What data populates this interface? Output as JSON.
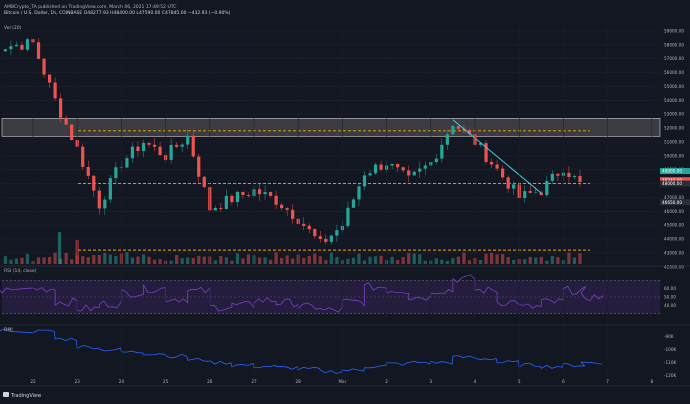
{
  "header": {
    "author": "AMBCrypto_TA",
    "published": "published on TradingView.com, March 06, 2021 17:49:52 UTC",
    "symbol_line": "Bitcoin / U.S. Dollar, 1h, COINBASE",
    "ohlc_line": "O48277.93  H48400.00  L47590.00  C47845.00  −432.93 (−0.90%)",
    "volume_label": "Vol (20)"
  },
  "footer": {
    "brand": "TradingView"
  },
  "colors": {
    "background": "#131722",
    "up": "#26a69a",
    "down": "#ef5350",
    "support_resistance": "#f7a600",
    "zone_fill": "#6b6b6b",
    "trendline": "#4ec8e0",
    "rsi": "#7b3fc4",
    "dmi": "#2962ff",
    "price_tag_green": "#26a69a",
    "price_tag_red": "#ef5350"
  },
  "chart_data": [
    {
      "type": "candlestick",
      "title": "Bitcoin / U.S. Dollar, 1h, COINBASE",
      "x_tick_labels": [
        "22",
        "23",
        "24",
        "25",
        "26",
        "27",
        "28",
        "Mar",
        "2",
        "3",
        "4",
        "5",
        "6",
        "7",
        "8"
      ],
      "y_tick_labels": [
        "59000.00",
        "58000.00",
        "57000.00",
        "56000.00",
        "55000.00",
        "54000.00",
        "53000.00",
        "52000.00",
        "51000.00",
        "50000.00",
        "49000.00",
        "48000.00",
        "47000.00",
        "46000.00",
        "45000.00",
        "44000.00",
        "43000.00",
        "42000.00"
      ],
      "ylim": [
        42200,
        59500
      ],
      "price_path_daily": [
        {
          "day": "21",
          "price": 57800
        },
        {
          "day": "22",
          "price": 58100
        },
        {
          "day": "22.5",
          "price": 54000
        },
        {
          "day": "23",
          "price": 50500
        },
        {
          "day": "23.5",
          "price": 46500
        },
        {
          "day": "24",
          "price": 49500
        },
        {
          "day": "24.5",
          "price": 51000
        },
        {
          "day": "25",
          "price": 50000
        },
        {
          "day": "25.5",
          "price": 51400
        },
        {
          "day": "26",
          "price": 46200
        },
        {
          "day": "26.5",
          "price": 46900
        },
        {
          "day": "27",
          "price": 47500
        },
        {
          "day": "27.5",
          "price": 46800
        },
        {
          "day": "28",
          "price": 45500
        },
        {
          "day": "28.5",
          "price": 43600
        },
        {
          "day": "Mar",
          "price": 45000
        },
        {
          "day": "1.5",
          "price": 48800
        },
        {
          "day": "2",
          "price": 49500
        },
        {
          "day": "2.5",
          "price": 48200
        },
        {
          "day": "3",
          "price": 49500
        },
        {
          "day": "3.5",
          "price": 52400
        },
        {
          "day": "4",
          "price": 51000
        },
        {
          "day": "4.5",
          "price": 49000
        },
        {
          "day": "5",
          "price": 47000
        },
        {
          "day": "5.5",
          "price": 47500
        },
        {
          "day": "6",
          "price": 49200
        },
        {
          "day": "6.4",
          "price": 47845
        }
      ],
      "horizontal_levels": [
        {
          "price": 51800,
          "style": "dashed"
        },
        {
          "price": 48000,
          "style": "dashed"
        },
        {
          "price": 43200,
          "style": "dashed"
        }
      ],
      "zone": {
        "low": 51400,
        "high": 52700
      },
      "trendline": [
        {
          "x": "3.5",
          "y": 52600
        },
        {
          "x": "5.5",
          "y": 47300
        }
      ],
      "price_tags": [
        {
          "value": "48900.00",
          "color": "green"
        },
        {
          "value": "48240.00",
          "color": "red"
        },
        {
          "value": "48000.00",
          "color": "neutral"
        },
        {
          "value": "46650.00",
          "color": "neutral"
        }
      ]
    },
    {
      "type": "line",
      "title": "RSI (14, close)",
      "ylim": [
        20,
        80
      ],
      "bands": [
        30,
        70
      ],
      "y_tick_labels": [
        "60.00",
        "50.00",
        "40.00"
      ],
      "values": [
        58,
        60,
        44,
        36,
        42,
        55,
        60,
        48,
        57,
        38,
        40,
        46,
        43,
        38,
        34,
        44,
        62,
        58,
        50,
        58,
        72,
        58,
        44,
        38,
        44,
        58,
        50
      ]
    },
    {
      "type": "line",
      "title": "DMI",
      "y_tick_labels": [
        "-90K",
        "-100K",
        "-110K",
        "-120K"
      ],
      "values": [
        -85,
        -86,
        -92,
        -98,
        -100,
        -102,
        -103,
        -105,
        -108,
        -110,
        -112,
        -113,
        -114,
        -115,
        -117,
        -116,
        -113,
        -111,
        -110,
        -110,
        -106,
        -107,
        -110,
        -112,
        -113,
        -112,
        -110
      ]
    }
  ]
}
